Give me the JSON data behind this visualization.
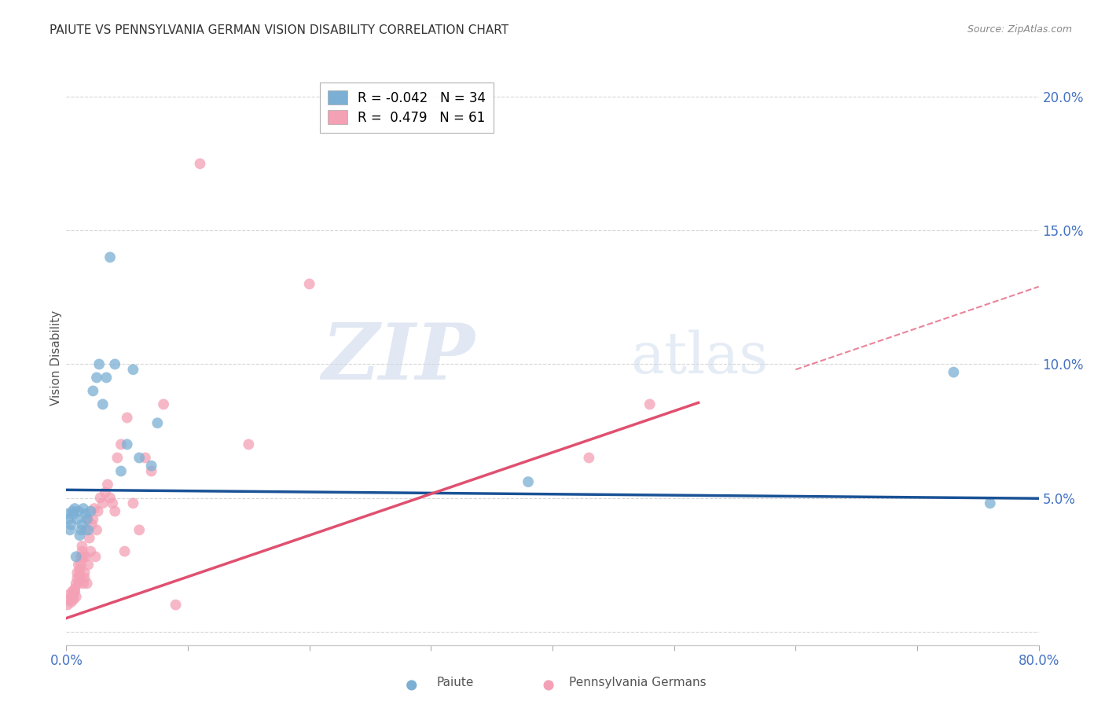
{
  "title": "PAIUTE VS PENNSYLVANIA GERMAN VISION DISABILITY CORRELATION CHART",
  "source": "Source: ZipAtlas.com",
  "ylabel": "Vision Disability",
  "xlim": [
    0.0,
    0.8
  ],
  "ylim": [
    -0.005,
    0.21
  ],
  "yticks": [
    0.0,
    0.05,
    0.1,
    0.15,
    0.2
  ],
  "ytick_labels": [
    "",
    "5.0%",
    "10.0%",
    "15.0%",
    "20.0%"
  ],
  "xticks": [
    0.0,
    0.1,
    0.2,
    0.3,
    0.4,
    0.5,
    0.6,
    0.7,
    0.8
  ],
  "xtick_labels": [
    "0.0%",
    "",
    "",
    "",
    "",
    "",
    "",
    "",
    "80.0%"
  ],
  "paiute_color": "#7bafd4",
  "pennger_color": "#f4a0b5",
  "paiute_line_color": "#1a5296",
  "pennger_line_color": "#e05070",
  "legend_R_paiute": "-0.042",
  "legend_N_paiute": "34",
  "legend_R_pennger": "0.479",
  "legend_N_pennger": "61",
  "watermark_zip": "ZIP",
  "watermark_atlas": "atlas",
  "grid_color": "#cccccc",
  "paiute_x": [
    0.001,
    0.002,
    0.003,
    0.004,
    0.005,
    0.006,
    0.007,
    0.008,
    0.009,
    0.01,
    0.011,
    0.012,
    0.013,
    0.014,
    0.016,
    0.017,
    0.018,
    0.02,
    0.022,
    0.025,
    0.027,
    0.03,
    0.033,
    0.036,
    0.04,
    0.045,
    0.05,
    0.055,
    0.06,
    0.07,
    0.075,
    0.38,
    0.73,
    0.76
  ],
  "paiute_y": [
    0.044,
    0.042,
    0.038,
    0.04,
    0.045,
    0.044,
    0.046,
    0.028,
    0.042,
    0.045,
    0.036,
    0.038,
    0.04,
    0.046,
    0.044,
    0.042,
    0.038,
    0.045,
    0.09,
    0.095,
    0.1,
    0.085,
    0.095,
    0.14,
    0.1,
    0.06,
    0.07,
    0.098,
    0.065,
    0.062,
    0.078,
    0.056,
    0.097,
    0.048
  ],
  "pennger_x": [
    0.001,
    0.002,
    0.003,
    0.004,
    0.005,
    0.005,
    0.006,
    0.006,
    0.007,
    0.007,
    0.008,
    0.008,
    0.009,
    0.009,
    0.01,
    0.01,
    0.011,
    0.011,
    0.012,
    0.012,
    0.013,
    0.013,
    0.014,
    0.014,
    0.015,
    0.015,
    0.016,
    0.016,
    0.017,
    0.018,
    0.018,
    0.019,
    0.02,
    0.021,
    0.022,
    0.023,
    0.024,
    0.025,
    0.026,
    0.028,
    0.03,
    0.032,
    0.034,
    0.036,
    0.038,
    0.04,
    0.042,
    0.045,
    0.048,
    0.05,
    0.055,
    0.06,
    0.065,
    0.07,
    0.08,
    0.09,
    0.11,
    0.15,
    0.2,
    0.43,
    0.48
  ],
  "pennger_y": [
    0.01,
    0.012,
    0.014,
    0.011,
    0.013,
    0.015,
    0.012,
    0.014,
    0.015,
    0.016,
    0.013,
    0.018,
    0.02,
    0.022,
    0.018,
    0.025,
    0.021,
    0.023,
    0.028,
    0.025,
    0.032,
    0.03,
    0.018,
    0.028,
    0.02,
    0.022,
    0.038,
    0.028,
    0.018,
    0.025,
    0.042,
    0.035,
    0.03,
    0.04,
    0.042,
    0.046,
    0.028,
    0.038,
    0.045,
    0.05,
    0.048,
    0.052,
    0.055,
    0.05,
    0.048,
    0.045,
    0.065,
    0.07,
    0.03,
    0.08,
    0.048,
    0.038,
    0.065,
    0.06,
    0.085,
    0.01,
    0.175,
    0.07,
    0.13,
    0.065,
    0.085
  ]
}
